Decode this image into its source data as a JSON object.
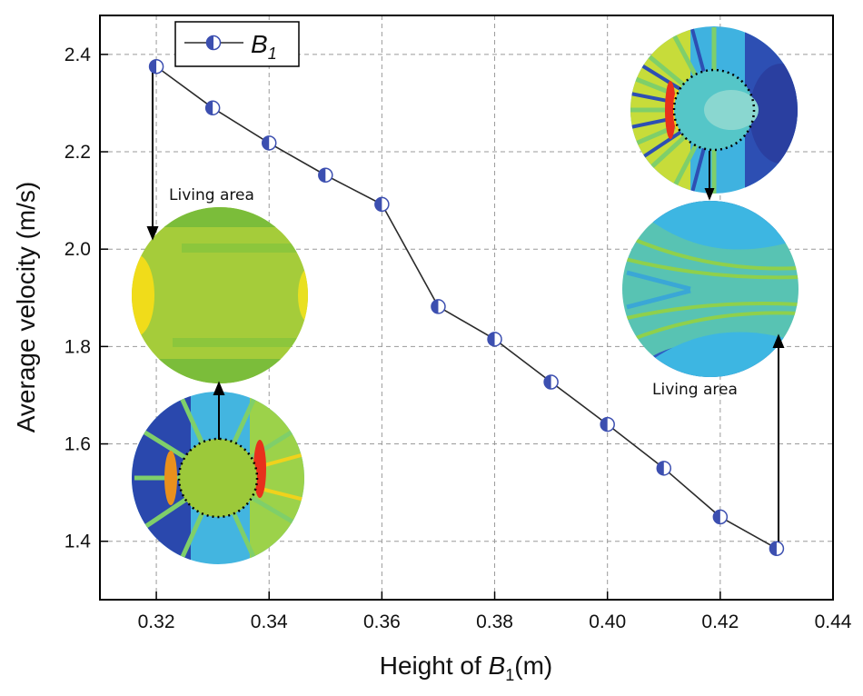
{
  "chart_data": {
    "type": "line",
    "xlabel_prefix": "Height of ",
    "xlabel_var": "B",
    "xlabel_sub": "1",
    "xlabel_suffix": "(m)",
    "ylabel": "Average velocity (m/s)",
    "xlim": [
      0.31,
      0.44
    ],
    "ylim": [
      1.28,
      2.48
    ],
    "xticks": [
      "0.32",
      "0.34",
      "0.36",
      "0.38",
      "0.40",
      "0.42",
      "0.44"
    ],
    "yticks": [
      "1.4",
      "1.6",
      "1.8",
      "2.0",
      "2.2",
      "2.4"
    ],
    "grid": true,
    "legend_position": "top-left",
    "series": [
      {
        "name_var": "B",
        "name_sub": "1",
        "x": [
          0.32,
          0.33,
          0.34,
          0.35,
          0.36,
          0.37,
          0.38,
          0.39,
          0.4,
          0.41,
          0.42,
          0.43
        ],
        "values": [
          2.375,
          2.29,
          2.218,
          2.152,
          2.092,
          1.882,
          1.815,
          1.727,
          1.64,
          1.55,
          1.45,
          1.385
        ]
      }
    ],
    "annotations": {
      "left_label": "Living area",
      "right_label": "Living area"
    },
    "colors": {
      "line": "#2b2b2b",
      "marker_blue": "#3c4fb0",
      "grid": "#9a9a9a"
    }
  }
}
